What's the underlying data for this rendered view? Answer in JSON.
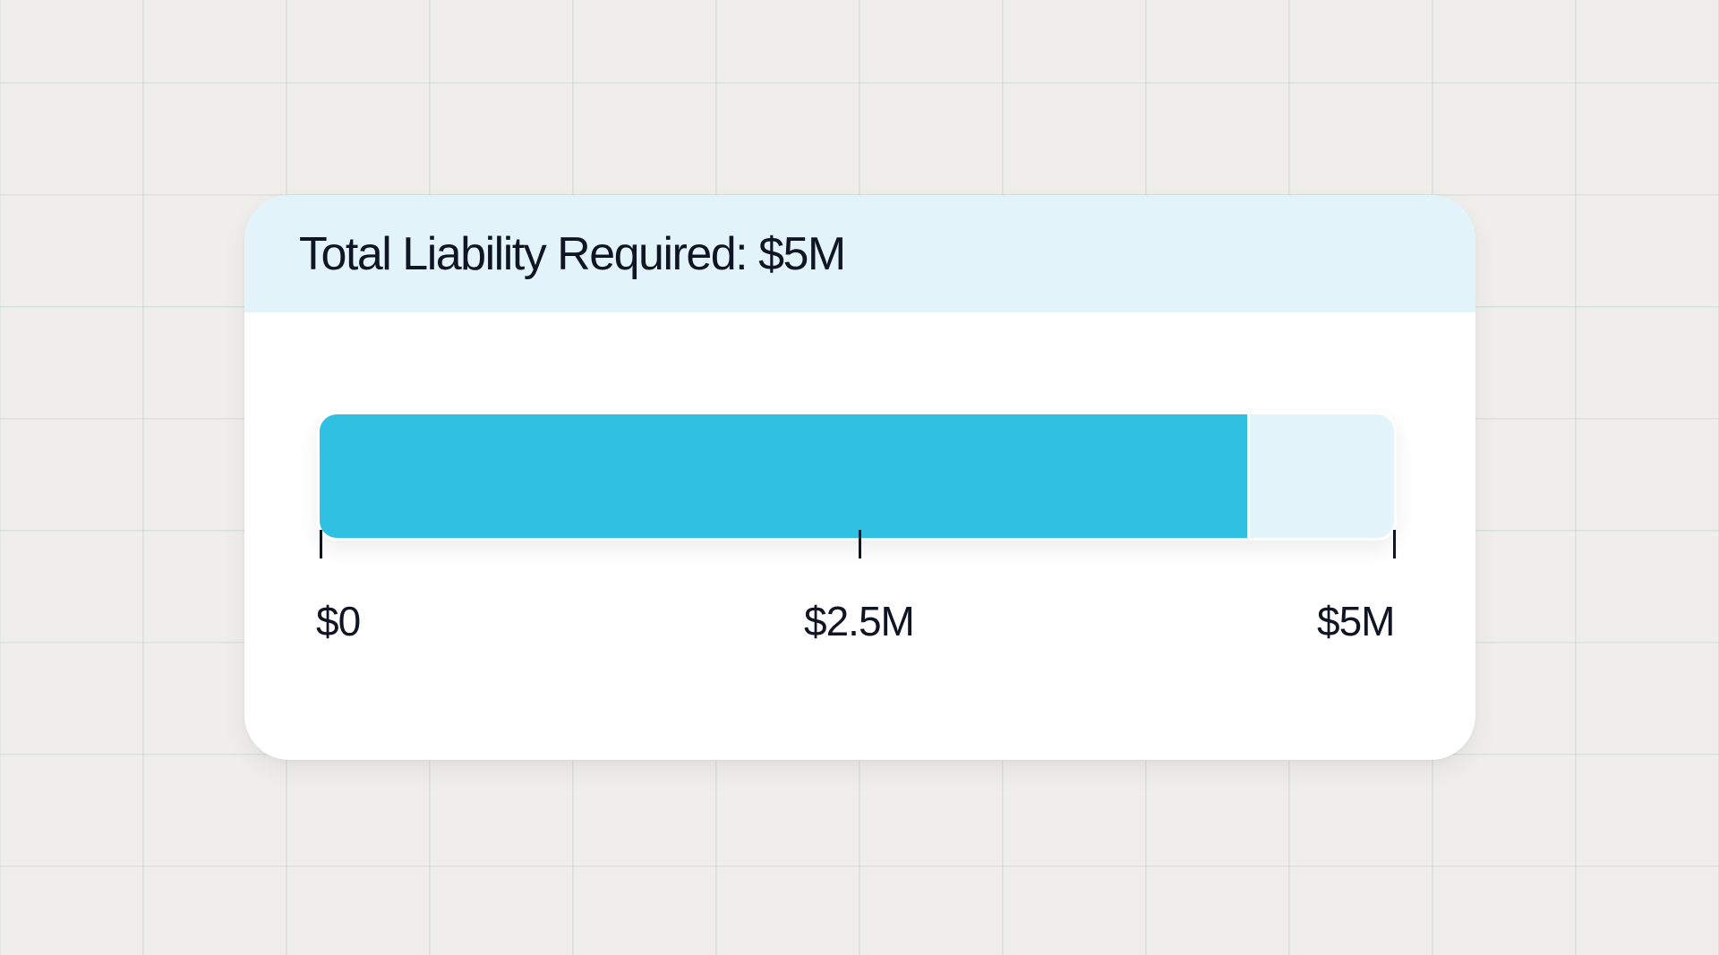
{
  "card": {
    "title": "Total Liability Required: $5M"
  },
  "progress": {
    "min": 0,
    "max": 5,
    "value": 4.33,
    "unit": "M",
    "colors": {
      "fill": "#30c0e2",
      "track": "#e3f4fa"
    }
  },
  "scale": {
    "labels": [
      "$0",
      "$2.5M",
      "$5M"
    ]
  }
}
